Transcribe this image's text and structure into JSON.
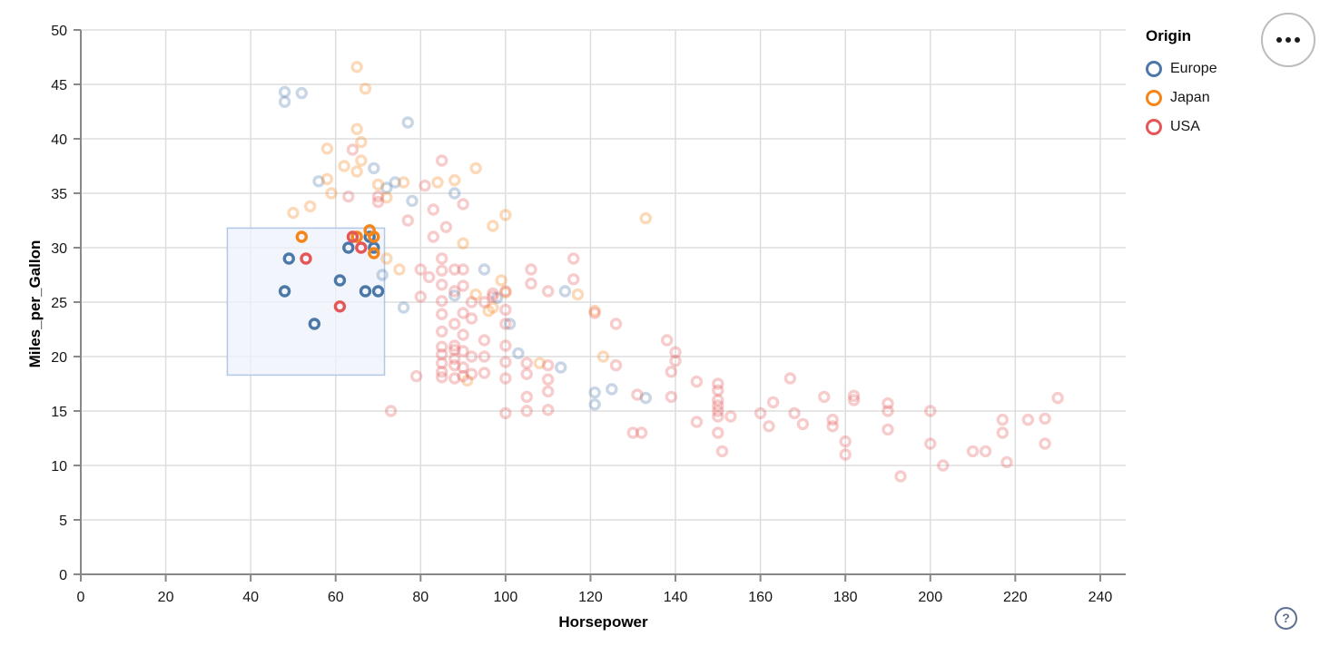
{
  "page": {
    "background": "#ffffff"
  },
  "legend": {
    "title": "Origin",
    "items": [
      {
        "label": "Europe",
        "color": "#4c78a8"
      },
      {
        "label": "Japan",
        "color": "#f58518"
      },
      {
        "label": "USA",
        "color": "#e45756"
      }
    ]
  },
  "actions_button": {
    "icon": "ellipsis-icon"
  },
  "help_button": {
    "label": "?"
  },
  "chart_data": {
    "type": "scatter",
    "title": "",
    "xlabel": "Horsepower",
    "ylabel": "Miles_per_Gallon",
    "xlim": [
      0,
      246
    ],
    "ylim": [
      0,
      50
    ],
    "x_ticks": [
      0,
      20,
      40,
      60,
      80,
      100,
      120,
      140,
      160,
      180,
      200,
      220,
      240
    ],
    "y_ticks": [
      0,
      5,
      10,
      15,
      20,
      25,
      30,
      35,
      40,
      45,
      50
    ],
    "grid": true,
    "legend_position": "top-right",
    "point_style": "open-circle",
    "point_format": "[horsepower, miles_per_gallon, selected_flag(1=inside brush, full opacity; absent=faded)]",
    "faded_opacity": 0.3,
    "selection_brush": {
      "x": [
        34.5,
        71.5
      ],
      "y": [
        18.3,
        31.8
      ],
      "fill": "#edf3fb",
      "fill_opacity": 0.75,
      "stroke": "#b3c7e6"
    },
    "series": [
      {
        "name": "Europe",
        "color": "#4c78a8",
        "points": [
          [
            48,
            26,
            1
          ],
          [
            49,
            29,
            1
          ],
          [
            55,
            23,
            1
          ],
          [
            61,
            27,
            1
          ],
          [
            63,
            30,
            1
          ],
          [
            67,
            26,
            1
          ],
          [
            70,
            26,
            1
          ],
          [
            68,
            31,
            1
          ],
          [
            69,
            30,
            1
          ],
          [
            48,
            44.3
          ],
          [
            48,
            43.4
          ],
          [
            52,
            44.2
          ],
          [
            77,
            41.5
          ],
          [
            56,
            36.1
          ],
          [
            69,
            37.3
          ],
          [
            72,
            35.5
          ],
          [
            74,
            36
          ],
          [
            78,
            34.3
          ],
          [
            88,
            35
          ],
          [
            71,
            27.5
          ],
          [
            76,
            24.5
          ],
          [
            95,
            28
          ],
          [
            98,
            25.4
          ],
          [
            88,
            25.6
          ],
          [
            113,
            19
          ],
          [
            114,
            26
          ],
          [
            121,
            16.7
          ],
          [
            125,
            17
          ],
          [
            133,
            16.2
          ],
          [
            121,
            15.6
          ],
          [
            101,
            23
          ],
          [
            103,
            20.3
          ]
        ]
      },
      {
        "name": "Japan",
        "color": "#f58518",
        "points": [
          [
            52,
            31,
            1
          ],
          [
            65,
            31,
            1
          ],
          [
            68,
            31.6,
            1
          ],
          [
            69,
            31,
            1
          ],
          [
            69,
            29.5,
            1
          ],
          [
            65,
            46.6
          ],
          [
            67,
            44.6
          ],
          [
            65,
            40.9
          ],
          [
            66,
            39.7
          ],
          [
            58,
            39.1
          ],
          [
            66,
            38
          ],
          [
            62,
            37.5
          ],
          [
            65,
            37
          ],
          [
            58,
            36.3
          ],
          [
            59,
            35
          ],
          [
            70,
            35.8
          ],
          [
            72,
            34.6
          ],
          [
            50,
            33.2
          ],
          [
            54,
            33.8
          ],
          [
            76,
            36
          ],
          [
            84,
            36
          ],
          [
            88,
            36.2
          ],
          [
            93,
            37.3
          ],
          [
            97,
            32
          ],
          [
            100,
            33
          ],
          [
            90,
            30.4
          ],
          [
            72,
            29
          ],
          [
            75,
            28
          ],
          [
            96,
            24.2
          ],
          [
            97,
            24.5
          ],
          [
            99,
            27
          ],
          [
            100,
            25.9
          ],
          [
            93,
            25.7
          ],
          [
            91,
            17.8
          ],
          [
            108,
            19.4
          ],
          [
            117,
            25.7
          ],
          [
            121,
            24.2
          ],
          [
            123,
            20
          ],
          [
            133,
            32.7
          ]
        ]
      },
      {
        "name": "USA",
        "color": "#e45756",
        "points": [
          [
            53,
            29,
            1
          ],
          [
            64,
            31,
            1
          ],
          [
            66,
            30,
            1
          ],
          [
            61,
            24.6,
            1
          ],
          [
            64,
            39
          ],
          [
            85,
            38
          ],
          [
            81,
            35.7
          ],
          [
            83,
            33.5
          ],
          [
            90,
            34
          ],
          [
            63,
            34.7
          ],
          [
            70,
            34.7
          ],
          [
            70,
            34.2
          ],
          [
            77,
            32.5
          ],
          [
            83,
            31
          ],
          [
            86,
            31.9
          ],
          [
            80,
            28
          ],
          [
            80,
            25.5
          ],
          [
            82,
            27.3
          ],
          [
            85,
            29
          ],
          [
            85,
            27.9
          ],
          [
            85,
            26.6
          ],
          [
            85,
            25.1
          ],
          [
            85,
            23.9
          ],
          [
            85,
            22.3
          ],
          [
            88,
            28
          ],
          [
            88,
            26
          ],
          [
            88,
            23
          ],
          [
            90,
            28
          ],
          [
            90,
            26.5
          ],
          [
            90,
            24
          ],
          [
            90,
            22
          ],
          [
            92,
            25
          ],
          [
            92,
            23.5
          ],
          [
            95,
            25
          ],
          [
            95,
            21.5
          ],
          [
            97,
            25.8
          ],
          [
            97,
            25.5
          ],
          [
            100,
            26
          ],
          [
            100,
            24.3
          ],
          [
            100,
            23
          ],
          [
            106,
            28
          ],
          [
            106,
            26.7
          ],
          [
            116,
            29
          ],
          [
            116,
            27.1
          ],
          [
            110,
            26
          ],
          [
            85,
            20.9
          ],
          [
            85,
            20.2
          ],
          [
            85,
            19.4
          ],
          [
            85,
            18.6
          ],
          [
            85,
            18.1
          ],
          [
            88,
            21
          ],
          [
            88,
            20.6
          ],
          [
            88,
            19.8
          ],
          [
            88,
            19.2
          ],
          [
            88,
            18
          ],
          [
            90,
            20.5
          ],
          [
            90,
            19
          ],
          [
            90,
            18.2
          ],
          [
            92,
            20
          ],
          [
            92,
            18.4
          ],
          [
            95,
            20
          ],
          [
            95,
            18.5
          ],
          [
            100,
            21
          ],
          [
            100,
            19.5
          ],
          [
            100,
            18
          ],
          [
            105,
            19.4
          ],
          [
            105,
            18.4
          ],
          [
            105,
            16.3
          ],
          [
            105,
            15
          ],
          [
            110,
            19.2
          ],
          [
            110,
            17.9
          ],
          [
            110,
            16.8
          ],
          [
            110,
            15.1
          ],
          [
            100,
            14.8
          ],
          [
            73,
            15
          ],
          [
            79,
            18.2
          ],
          [
            121,
            24
          ],
          [
            126,
            23
          ],
          [
            126,
            19.2
          ],
          [
            131,
            16.5
          ],
          [
            130,
            13
          ],
          [
            132,
            13
          ],
          [
            139,
            16.3
          ],
          [
            140,
            20.4
          ],
          [
            140,
            19.6
          ],
          [
            138,
            21.5
          ],
          [
            145,
            17.7
          ],
          [
            139,
            18.6
          ],
          [
            145,
            14
          ],
          [
            150,
            17.5
          ],
          [
            150,
            16.9
          ],
          [
            150,
            16
          ],
          [
            150,
            15.5
          ],
          [
            150,
            15
          ],
          [
            150,
            14.5
          ],
          [
            150,
            13
          ],
          [
            151,
            11.3
          ],
          [
            153,
            14.5
          ],
          [
            160,
            14.8
          ],
          [
            162,
            13.6
          ],
          [
            163,
            15.8
          ],
          [
            167,
            18
          ],
          [
            168,
            14.8
          ],
          [
            170,
            13.8
          ],
          [
            175,
            16.3
          ],
          [
            177,
            14.2
          ],
          [
            177,
            13.6
          ],
          [
            182,
            16.4
          ],
          [
            182,
            16
          ],
          [
            180,
            12.2
          ],
          [
            180,
            11
          ],
          [
            190,
            15.7
          ],
          [
            190,
            15
          ],
          [
            190,
            13.3
          ],
          [
            200,
            15
          ],
          [
            200,
            12
          ],
          [
            203,
            10
          ],
          [
            193,
            9
          ],
          [
            210,
            11.3
          ],
          [
            213,
            11.3
          ],
          [
            218,
            10.3
          ],
          [
            217,
            14.2
          ],
          [
            217,
            13
          ],
          [
            223,
            14.2
          ],
          [
            227,
            14.3
          ],
          [
            227,
            12
          ],
          [
            230,
            16.2
          ]
        ]
      }
    ]
  }
}
